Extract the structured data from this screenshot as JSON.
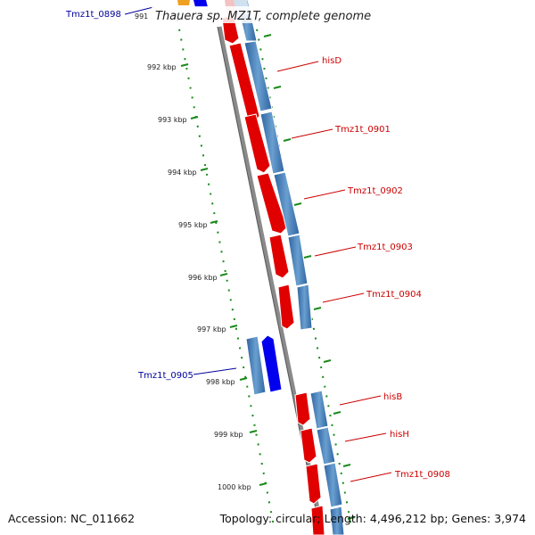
{
  "title": "Thauera sp. MZ1T, complete genome",
  "accession_text": "Accession: NC_011662",
  "summary_text": "Topology: circular; Length: 4,496,212 bp; Genes: 3,974",
  "colors": {
    "backbone": "#8a8a8a",
    "forward_gene": "#e00000",
    "reverse_gene": "#0000ee",
    "cds_track": "#4a80b8",
    "tick": "#1a8a1a",
    "label_red": "#cc0000",
    "label_blue": "#00009a",
    "orange_gene": "#f0a020"
  },
  "ruler_labels": [
    "991",
    "992 kbp",
    "993 kbp",
    "994 kbp",
    "995 kbp",
    "996 kbp",
    "997 kbp",
    "998 kbp",
    "999 kbp",
    "1000 kbp"
  ],
  "gene_labels": {
    "left": [
      "Tmz1t_0898",
      "Tmz1t_0905"
    ],
    "right": [
      "hisD",
      "Tmz1t_0901",
      "Tmz1t_0902",
      "Tmz1t_0903",
      "Tmz1t_0904",
      "hisB",
      "hisH",
      "Tmz1t_0908"
    ]
  }
}
